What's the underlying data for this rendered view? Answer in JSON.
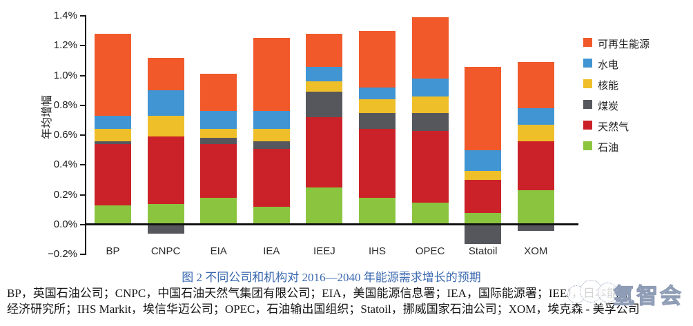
{
  "chart_data": {
    "type": "stacked_bar",
    "title": "图 2  不同公司和机构对 2016—2040 年能源需求增长的预期",
    "xlabel": "",
    "ylabel": "年均增幅",
    "ylim": [
      -0.2,
      1.4
    ],
    "grid": false,
    "legend_position": "right",
    "categories": [
      "BP",
      "CNPC",
      "EIA",
      "IEA",
      "IEEJ",
      "IHS",
      "OPEC",
      "Statoil",
      "XOM"
    ],
    "series": [
      {
        "name": "石油",
        "color": "#8BC53F",
        "values": [
          0.13,
          0.14,
          0.18,
          0.12,
          0.25,
          0.18,
          0.15,
          0.08,
          0.23
        ]
      },
      {
        "name": "天然气",
        "color": "#CB2128",
        "values": [
          0.41,
          0.45,
          0.36,
          0.39,
          0.47,
          0.46,
          0.48,
          0.22,
          0.33
        ]
      },
      {
        "name": "煤炭",
        "color": "#56575C",
        "values": [
          0.02,
          -0.06,
          0.04,
          0.05,
          0.17,
          0.11,
          0.12,
          -0.13,
          -0.04
        ]
      },
      {
        "name": "核能",
        "color": "#EFBF2A",
        "values": [
          0.08,
          0.14,
          0.06,
          0.08,
          0.07,
          0.09,
          0.11,
          0.06,
          0.11
        ]
      },
      {
        "name": "水电",
        "color": "#4195D3",
        "values": [
          0.09,
          0.17,
          0.12,
          0.12,
          0.1,
          0.08,
          0.12,
          0.14,
          0.11
        ]
      },
      {
        "name": "可再生能源",
        "color": "#F1592A",
        "values": [
          0.55,
          0.22,
          0.25,
          0.49,
          0.22,
          0.38,
          0.41,
          0.56,
          0.31
        ]
      }
    ],
    "legend": [
      {
        "label": "可再生能源",
        "color": "#F1592A"
      },
      {
        "label": "水电",
        "color": "#4195D3"
      },
      {
        "label": "核能",
        "color": "#EFBF2A"
      },
      {
        "label": "煤炭",
        "color": "#56575C"
      },
      {
        "label": "天然气",
        "color": "#CB2128"
      },
      {
        "label": "石油",
        "color": "#8BC53F"
      }
    ],
    "y_ticks": [
      "1.4%",
      "1.2%",
      "1.0%",
      "0.8%",
      "0.6%",
      "0.4%",
      "0.2%",
      "0.0%",
      "−0.2%"
    ],
    "y_tick_values": [
      1.4,
      1.2,
      1.0,
      0.8,
      0.6,
      0.4,
      0.2,
      0.0,
      -0.2
    ]
  },
  "footnote": {
    "line1": "BP，英国石油公司；CNPC，中国石油天然气集团有限公司；EIA，美国能源信息署；IEA，国际能源署；IEEJ，日本能源",
    "line2": "经济研究所；IHS Markit，埃信华迈公司；OPEC，石油输出国组织；Statoil，挪威国家石油公司；XOM，埃克森 - 美孚公司"
  },
  "watermark": {
    "text": "氢智会"
  }
}
